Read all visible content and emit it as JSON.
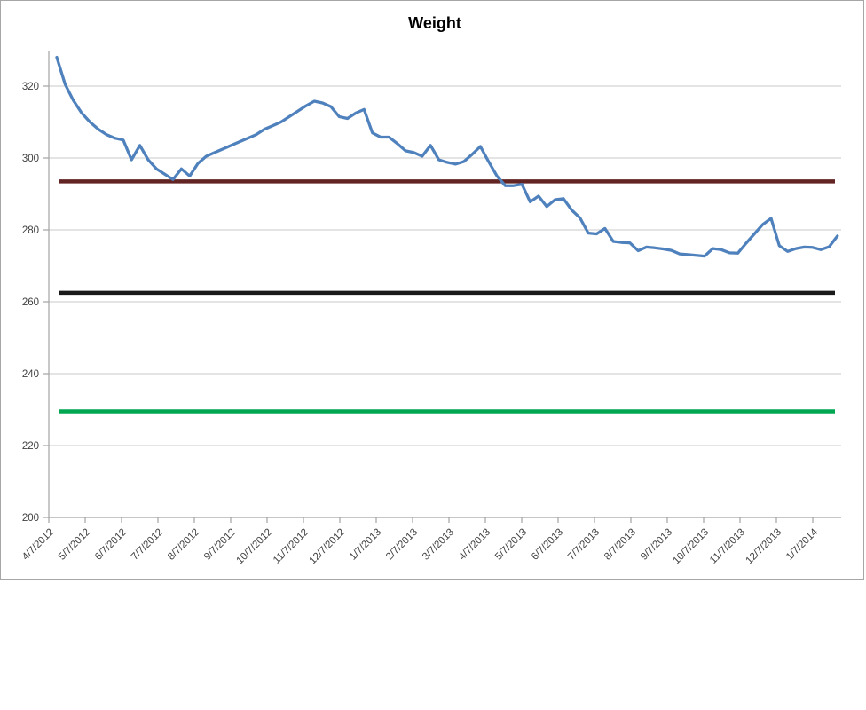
{
  "title": "Weight",
  "chart_data": {
    "type": "line",
    "title": "Weight",
    "grid": true,
    "legend": false,
    "x_axis": {
      "kind": "date",
      "tick_labels": [
        "4/7/2012",
        "5/7/2012",
        "6/7/2012",
        "7/7/2012",
        "8/7/2012",
        "9/7/2012",
        "10/7/2012",
        "11/7/2012",
        "12/7/2012",
        "1/7/2013",
        "2/7/2013",
        "3/7/2013",
        "4/7/2013",
        "5/7/2013",
        "6/7/2013",
        "7/7/2013",
        "8/7/2013",
        "9/7/2013",
        "10/7/2013",
        "11/7/2013",
        "12/7/2013",
        "1/7/2014"
      ],
      "label_rotation_deg": 45
    },
    "y_axis": {
      "min": 200,
      "max": 330,
      "tick_step": 20,
      "tick_labels": [
        200,
        220,
        240,
        260,
        280,
        300,
        320
      ]
    },
    "series": [
      {
        "name": "Weight",
        "color": "#4F81BD",
        "start_date": "4/7/2012",
        "interval": "weekly",
        "values": [
          328,
          320.5,
          316,
          312.5,
          310,
          308,
          306.5,
          305.5,
          305,
          299.5,
          303.5,
          299.5,
          297,
          295.5,
          294,
          297,
          295,
          298.5,
          300.5,
          301.5,
          302.5,
          303.5,
          304.5,
          305.5,
          306.5,
          308,
          309,
          310,
          311.5,
          313,
          314.5,
          315.8,
          315.3,
          314.3,
          311.5,
          311,
          312.5,
          313.5,
          307,
          305.8,
          305.8,
          304,
          302,
          301.5,
          300.5,
          303.5,
          299.5,
          298.8,
          298.3,
          299,
          301,
          303.2,
          299,
          295,
          292.3,
          292.3,
          292.7,
          287.8,
          289.4,
          286.5,
          288.4,
          288.7,
          285.5,
          283.3,
          279.1,
          278.9,
          280.4,
          276.8,
          276.5,
          276.4,
          274.2,
          275.2,
          275,
          274.7,
          274.3,
          273.3,
          273.1,
          272.9,
          272.7,
          274.8,
          274.5,
          273.6,
          273.5,
          276.3,
          278.9,
          281.5,
          283.2,
          275.6,
          274,
          274.8,
          275.2,
          275.1,
          274.5,
          275.3,
          278.3
        ]
      }
    ],
    "reference_lines": [
      {
        "name": "upper-goal-line",
        "value": 293.5,
        "color": "#632523"
      },
      {
        "name": "middle-goal-line",
        "value": 262.5,
        "color": "#1a1a1a"
      },
      {
        "name": "lower-goal-line",
        "value": 229.5,
        "color": "#00A650"
      }
    ],
    "colors": {
      "plot_background": "#ffffff",
      "gridline": "#c8c8c8",
      "axis": "#a3a3a3",
      "frame_border": "#a6a6a6",
      "axis_text": "#3f3f3f"
    }
  }
}
